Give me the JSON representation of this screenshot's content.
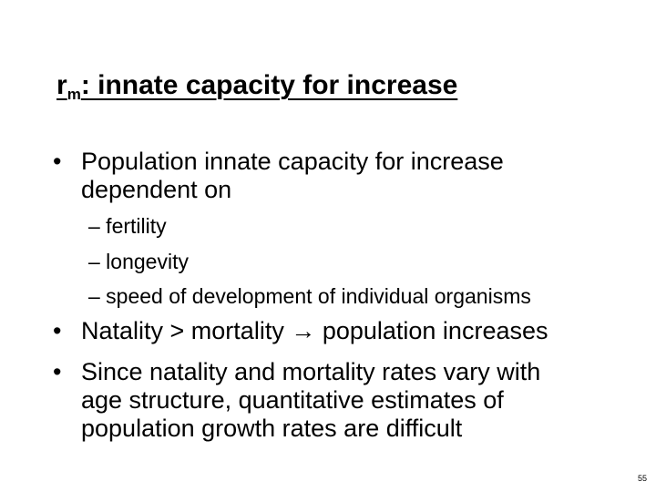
{
  "slide": {
    "title_main": "r",
    "title_subscript": "m",
    "title_rest": ": innate capacity for increase",
    "bullet_symbol": "•",
    "bullets": [
      {
        "lines": [
          "Population innate capacity for increase",
          "dependent on"
        ]
      },
      {
        "lines": [
          "Natality > mortality → population increases"
        ]
      },
      {
        "lines": [
          "Since natality and mortality rates vary with",
          "age structure, quantitative estimates of",
          "population growth rates are difficult"
        ]
      }
    ],
    "sub_bullets": [
      "– fertility",
      "– longevity",
      "– speed of development of individual organisms"
    ],
    "page_number": "55"
  }
}
